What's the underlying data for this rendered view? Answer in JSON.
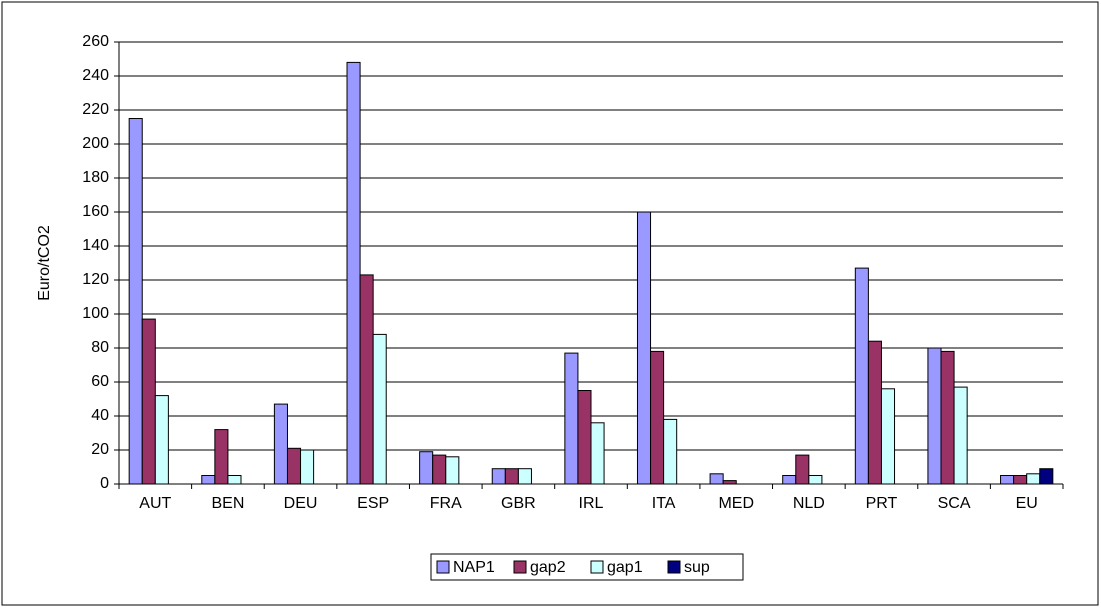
{
  "chart_data": {
    "type": "bar",
    "ylabel": "Euro/tCO2",
    "categories": [
      "AUT",
      "BEN",
      "DEU",
      "ESP",
      "FRA",
      "GBR",
      "IRL",
      "ITA",
      "MED",
      "NLD",
      "PRT",
      "SCA",
      "EU"
    ],
    "series": [
      {
        "name": "NAP1",
        "color": "#9999ff",
        "values": [
          215,
          5,
          47,
          248,
          19,
          9,
          77,
          160,
          6,
          5,
          127,
          80,
          5
        ]
      },
      {
        "name": "gap2",
        "color": "#993366",
        "values": [
          97,
          32,
          21,
          123,
          17,
          9,
          55,
          78,
          2,
          17,
          84,
          78,
          5
        ]
      },
      {
        "name": "gap1",
        "color": "#ccffff",
        "values": [
          52,
          5,
          20,
          88,
          16,
          9,
          36,
          38,
          0,
          5,
          56,
          57,
          6
        ]
      },
      {
        "name": "sup",
        "color": "#000080",
        "values": [
          null,
          null,
          null,
          null,
          null,
          null,
          null,
          null,
          null,
          null,
          null,
          null,
          9
        ]
      }
    ],
    "ylim": [
      0,
      260
    ],
    "yticks": [
      0,
      20,
      40,
      60,
      80,
      100,
      120,
      140,
      160,
      180,
      200,
      220,
      240,
      260
    ],
    "grid": true
  }
}
